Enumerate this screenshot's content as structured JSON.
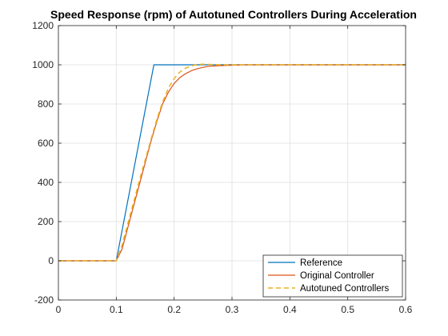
{
  "chart_data": {
    "type": "line",
    "title": "Speed Response (rpm) of Autotuned Controllers During Acceleration",
    "xlabel": "",
    "ylabel": "",
    "xlim": [
      0,
      0.6
    ],
    "ylim": [
      -200,
      1200
    ],
    "x_ticks": [
      "0",
      "0.1",
      "0.2",
      "0.3",
      "0.4",
      "0.5",
      "0.6"
    ],
    "y_ticks": [
      "-200",
      "0",
      "200",
      "400",
      "600",
      "800",
      "1000",
      "1200"
    ],
    "grid": true,
    "legend_position": "bottom-right",
    "series": [
      {
        "name": "Reference",
        "color": "#0072BD",
        "style": "solid",
        "x": [
          0,
          0.1,
          0.165,
          0.6
        ],
        "y": [
          0,
          0,
          1000,
          1000
        ]
      },
      {
        "name": "Original Controller",
        "color": "#D95319",
        "style": "solid",
        "x": [
          0,
          0.1,
          0.11,
          0.12,
          0.13,
          0.14,
          0.15,
          0.16,
          0.17,
          0.18,
          0.19,
          0.2,
          0.21,
          0.22,
          0.23,
          0.24,
          0.25,
          0.26,
          0.28,
          0.3,
          0.32,
          0.35,
          0.6
        ],
        "y": [
          0,
          0,
          60,
          170,
          280,
          390,
          500,
          610,
          710,
          800,
          860,
          905,
          935,
          955,
          970,
          980,
          987,
          992,
          996,
          998,
          1000,
          1000,
          1000
        ]
      },
      {
        "name": "Autotuned Controllers",
        "color": "#EDB120",
        "style": "dashed",
        "x": [
          0,
          0.1,
          0.11,
          0.12,
          0.13,
          0.14,
          0.15,
          0.16,
          0.17,
          0.18,
          0.19,
          0.2,
          0.21,
          0.22,
          0.23,
          0.24,
          0.25,
          0.26,
          0.28,
          0.3,
          0.6
        ],
        "y": [
          0,
          0,
          80,
          190,
          300,
          410,
          515,
          620,
          720,
          810,
          880,
          930,
          963,
          983,
          995,
          1001,
          1003,
          1002,
          1000,
          1000,
          1000
        ]
      }
    ]
  }
}
